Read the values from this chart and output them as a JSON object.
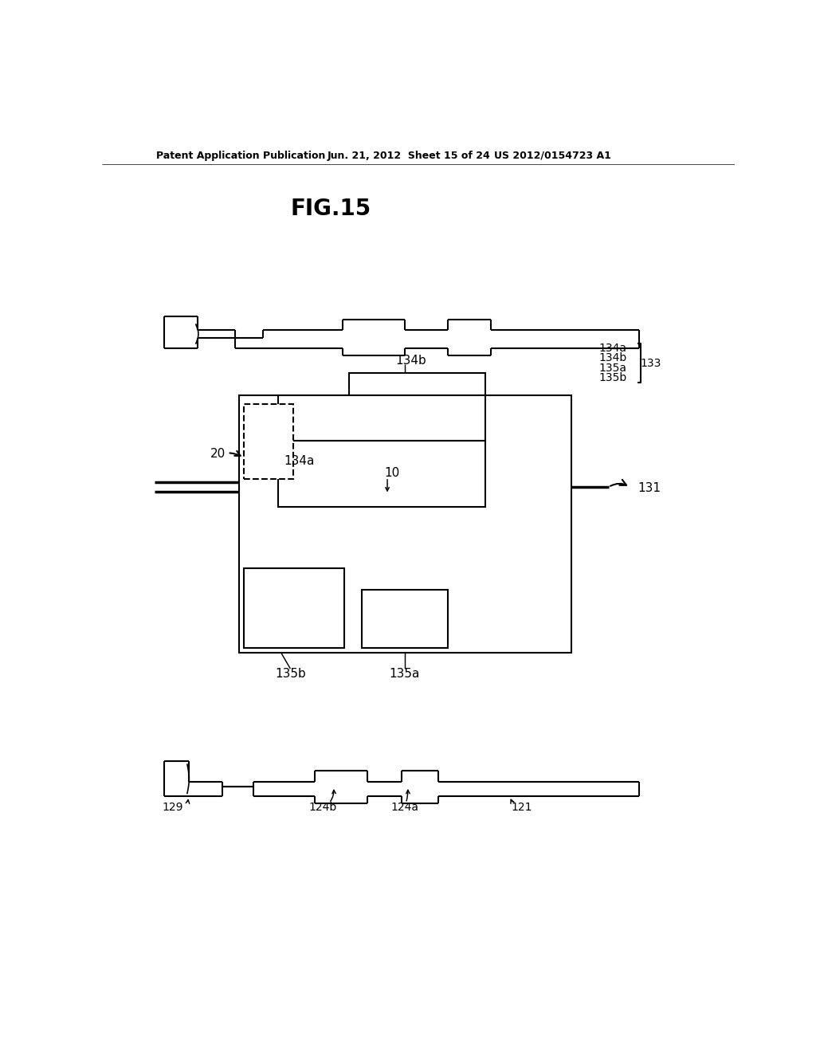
{
  "bg_color": "#ffffff",
  "lc": "#000000",
  "lw": 1.5,
  "lw_thick": 2.5,
  "header_left": "Patent Application Publication",
  "header_mid": "Jun. 21, 2012  Sheet 15 of 24",
  "header_right": "US 2012/0154723 A1",
  "fig_label": "FIG.15"
}
